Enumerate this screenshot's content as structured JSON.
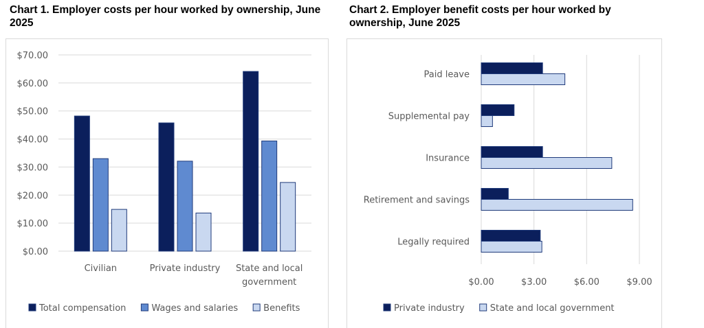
{
  "chart_data": [
    {
      "type": "bar",
      "title": "Chart 1. Employer costs per hour worked by ownership, June 2025",
      "categories": [
        [
          "Civilian"
        ],
        [
          "Private industry"
        ],
        [
          "State and local",
          "government"
        ]
      ],
      "yticks": [
        "$0.00",
        "$10.00",
        "$20.00",
        "$30.00",
        "$40.00",
        "$50.00",
        "$60.00",
        "$70.00"
      ],
      "ylim": [
        0,
        70
      ],
      "grid": true,
      "legend_position": "bottom",
      "series": [
        {
          "name": "Total compensation",
          "values": [
            48.2,
            45.75,
            64.1
          ],
          "color": "#0b1f5c"
        },
        {
          "name": "Wages and salaries",
          "values": [
            33.0,
            32.1,
            39.3
          ],
          "color": "#5f8ad0"
        },
        {
          "name": "Benefits",
          "values": [
            14.9,
            13.6,
            24.5
          ],
          "color": "#c9d8f0"
        }
      ]
    },
    {
      "type": "bar",
      "orientation": "horizontal",
      "title": "Chart 2. Employer benefit costs per hour worked by ownership, June 2025",
      "categories": [
        "Paid leave",
        "Supplemental pay",
        "Insurance",
        "Retirement and savings",
        "Legally required"
      ],
      "xticks": [
        "$0.00",
        "$3.00",
        "$6.00",
        "$9.00"
      ],
      "xlim": [
        0,
        9
      ],
      "grid": true,
      "legend_position": "bottom",
      "series": [
        {
          "name": "Private industry",
          "values": [
            3.49,
            1.87,
            3.49,
            1.54,
            3.36
          ],
          "color": "#0b1f5c"
        },
        {
          "name": "State and local government",
          "values": [
            4.76,
            0.64,
            7.43,
            8.62,
            3.45
          ],
          "color": "#c9d8f0"
        }
      ]
    }
  ]
}
